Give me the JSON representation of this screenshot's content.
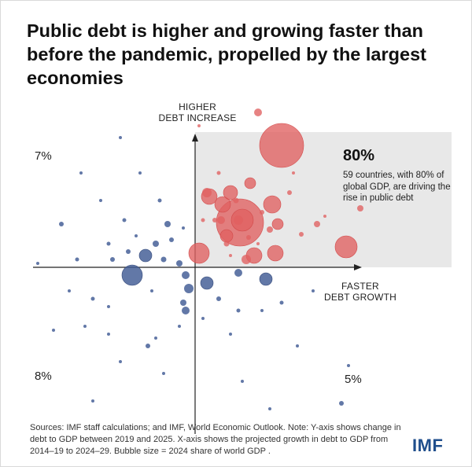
{
  "title": "Public debt is higher and growing faster than before the pandemic, propelled by the largest economies",
  "y_axis_label": "HIGHER\nDEBT INCREASE",
  "x_axis_label": "FASTER\nDEBT GROWTH",
  "quadrant_percentages": {
    "upper_left": "7%",
    "lower_left": "8%",
    "lower_right": "5%"
  },
  "callout": {
    "percent": "80%",
    "text": "59 countries, with 80% of global GDP, are driving the rise in public debt"
  },
  "note": "Sources: IMF staff calculations; and IMF, World Economic Outlook. Note: Y-axis shows change in debt to GDP between 2019 and 2025. X-axis shows the projected growth in debt to GDP from 2014–19 to 2024–29. Bubble size = 2024 share of world GDP .",
  "logo": "IMF",
  "colors": {
    "red": "#e06060",
    "blue": "#3f5a94",
    "highlight": "#e8e8e8"
  },
  "chart_data": {
    "type": "scatter",
    "title": "Public debt is higher and growing faster than before the pandemic, propelled by the largest economies",
    "xlabel": "FASTER DEBT GROWTH",
    "ylabel": "HIGHER DEBT INCREASE",
    "xlim": [
      -2.1,
      2.2
    ],
    "ylim": [
      -2.1,
      2.1
    ],
    "origin_axes": true,
    "highlighted_quadrant": "upper-right",
    "series": [
      {
        "color": "red",
        "points": [
          {
            "x": 1.1,
            "y": 1.55,
            "s": 28
          },
          {
            "x": 0.57,
            "y": 0.57,
            "s": 30
          },
          {
            "x": 0.35,
            "y": 0.8,
            "s": 10
          },
          {
            "x": 0.18,
            "y": 0.9,
            "s": 10
          },
          {
            "x": 0.05,
            "y": 0.18,
            "s": 13
          },
          {
            "x": 0.98,
            "y": 0.8,
            "s": 11
          },
          {
            "x": 0.45,
            "y": 0.95,
            "s": 9
          },
          {
            "x": 0.7,
            "y": 1.07,
            "s": 7
          },
          {
            "x": 0.6,
            "y": 0.6,
            "s": 14
          },
          {
            "x": 1.05,
            "y": 0.55,
            "s": 7
          },
          {
            "x": 1.92,
            "y": 0.26,
            "s": 14
          },
          {
            "x": 1.02,
            "y": 0.18,
            "s": 10
          },
          {
            "x": 0.75,
            "y": 0.15,
            "s": 10
          },
          {
            "x": 0.8,
            "y": 1.97,
            "s": 5
          },
          {
            "x": 0.4,
            "y": 0.4,
            "s": 8
          },
          {
            "x": 0.65,
            "y": 0.1,
            "s": 6
          },
          {
            "x": 0.15,
            "y": 0.95,
            "s": 6
          },
          {
            "x": 0.55,
            "y": 0.6,
            "s": 6
          },
          {
            "x": 0.33,
            "y": 0.6,
            "s": 5
          },
          {
            "x": 1.55,
            "y": 0.55,
            "s": 4
          },
          {
            "x": 0.95,
            "y": 0.48,
            "s": 4
          },
          {
            "x": 2.1,
            "y": 0.75,
            "s": 4
          },
          {
            "x": 0.4,
            "y": 0.3,
            "s": 3.5
          },
          {
            "x": 0.52,
            "y": 0.85,
            "s": 3.5
          },
          {
            "x": 0.25,
            "y": 0.6,
            "s": 3
          },
          {
            "x": 0.68,
            "y": 0.38,
            "s": 3
          },
          {
            "x": 0.85,
            "y": 0.7,
            "s": 3
          },
          {
            "x": 1.35,
            "y": 0.42,
            "s": 3
          },
          {
            "x": 1.2,
            "y": 0.95,
            "s": 3
          },
          {
            "x": 0.3,
            "y": 1.2,
            "s": 2.5
          },
          {
            "x": 0.1,
            "y": 0.6,
            "s": 2.5
          },
          {
            "x": 0.05,
            "y": 1.8,
            "s": 2
          },
          {
            "x": 1.65,
            "y": 0.65,
            "s": 2
          },
          {
            "x": 0.8,
            "y": 0.3,
            "s": 2
          },
          {
            "x": 1.25,
            "y": 1.2,
            "s": 2
          },
          {
            "x": 0.45,
            "y": 0.15,
            "s": 2
          }
        ]
      },
      {
        "color": "blue",
        "points": [
          {
            "x": -0.8,
            "y": -0.1,
            "s": 13
          },
          {
            "x": -0.63,
            "y": 0.15,
            "s": 8
          },
          {
            "x": 0.15,
            "y": -0.2,
            "s": 8
          },
          {
            "x": 0.9,
            "y": -0.15,
            "s": 8
          },
          {
            "x": -0.08,
            "y": -0.27,
            "s": 6
          },
          {
            "x": -0.12,
            "y": -0.1,
            "s": 5
          },
          {
            "x": 0.55,
            "y": -0.07,
            "s": 5
          },
          {
            "x": -0.5,
            "y": 0.3,
            "s": 4
          },
          {
            "x": -0.12,
            "y": -0.55,
            "s": 5
          },
          {
            "x": -0.35,
            "y": 0.55,
            "s": 4
          },
          {
            "x": -0.85,
            "y": 0.2,
            "s": 3
          },
          {
            "x": -0.15,
            "y": -0.45,
            "s": 4
          },
          {
            "x": -0.2,
            "y": 0.05,
            "s": 4
          },
          {
            "x": -0.4,
            "y": 0.1,
            "s": 3.5
          },
          {
            "x": -0.6,
            "y": -1.0,
            "s": 3
          },
          {
            "x": 1.86,
            "y": -1.73,
            "s": 3
          },
          {
            "x": -1.7,
            "y": 0.55,
            "s": 3
          },
          {
            "x": -1.05,
            "y": 0.1,
            "s": 3
          },
          {
            "x": -0.3,
            "y": 0.35,
            "s": 3
          },
          {
            "x": 0.3,
            "y": -0.4,
            "s": 3
          },
          {
            "x": 0.55,
            "y": -0.55,
            "s": 2.5
          },
          {
            "x": 1.1,
            "y": -0.45,
            "s": 2.5
          },
          {
            "x": -1.1,
            "y": 0.3,
            "s": 2.5
          },
          {
            "x": -1.3,
            "y": -0.4,
            "s": 2.5
          },
          {
            "x": -1.5,
            "y": 0.1,
            "s": 2.5
          },
          {
            "x": -0.9,
            "y": 0.6,
            "s": 2.5
          },
          {
            "x": -0.45,
            "y": 0.85,
            "s": 2.5
          },
          {
            "x": -0.7,
            "y": 1.2,
            "s": 2
          },
          {
            "x": -0.95,
            "y": 1.65,
            "s": 2
          },
          {
            "x": -1.45,
            "y": 1.2,
            "s": 2
          },
          {
            "x": -1.2,
            "y": 0.85,
            "s": 2
          },
          {
            "x": -1.8,
            "y": -0.8,
            "s": 2
          },
          {
            "x": -1.4,
            "y": -0.75,
            "s": 2
          },
          {
            "x": -1.3,
            "y": -1.7,
            "s": 2
          },
          {
            "x": -0.5,
            "y": -0.9,
            "s": 2
          },
          {
            "x": -0.2,
            "y": -0.75,
            "s": 2
          },
          {
            "x": 0.45,
            "y": -0.85,
            "s": 2
          },
          {
            "x": 0.85,
            "y": -0.55,
            "s": 2
          },
          {
            "x": 1.5,
            "y": -0.3,
            "s": 2
          },
          {
            "x": 1.95,
            "y": -1.25,
            "s": 2
          },
          {
            "x": 0.95,
            "y": -1.8,
            "s": 2
          },
          {
            "x": -1.1,
            "y": -0.85,
            "s": 2
          },
          {
            "x": -0.95,
            "y": -1.2,
            "s": 2
          },
          {
            "x": -2.0,
            "y": 0.05,
            "s": 2
          },
          {
            "x": -0.15,
            "y": 0.5,
            "s": 2
          },
          {
            "x": 0.1,
            "y": -0.65,
            "s": 2
          },
          {
            "x": -0.55,
            "y": -0.3,
            "s": 2
          },
          {
            "x": -0.75,
            "y": 0.4,
            "s": 2
          },
          {
            "x": -1.1,
            "y": -0.5,
            "s": 2
          },
          {
            "x": -1.6,
            "y": -0.3,
            "s": 2
          },
          {
            "x": -0.4,
            "y": -1.35,
            "s": 2
          },
          {
            "x": 0.6,
            "y": -1.45,
            "s": 2
          },
          {
            "x": 1.3,
            "y": -1.0,
            "s": 2
          }
        ]
      }
    ]
  }
}
